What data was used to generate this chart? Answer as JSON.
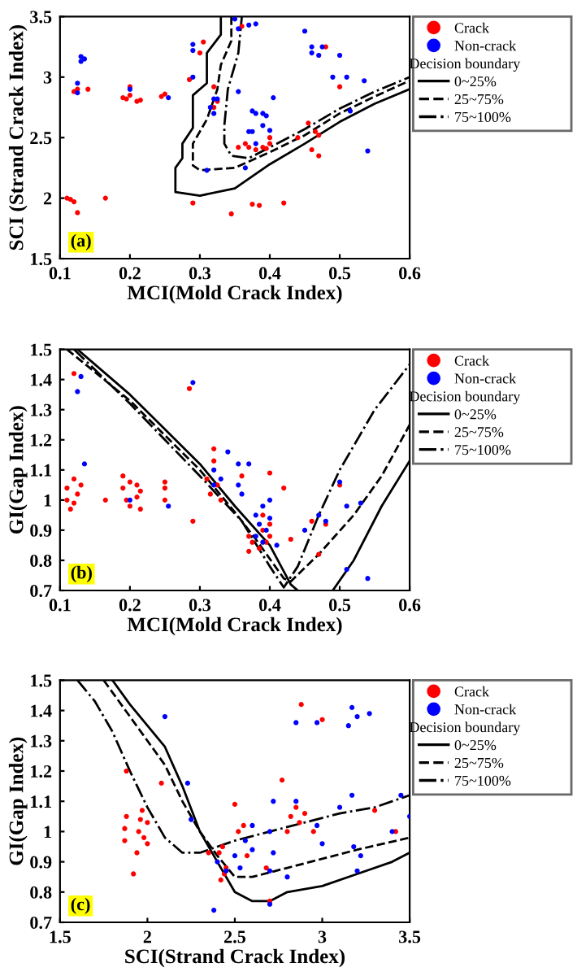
{
  "chart_data": [
    {
      "type": "scatter",
      "xlabel": "MCI(Mold Crack Index)",
      "ylabel": "SCI (Strand Crack Index)",
      "legend_title": "Decision boundary",
      "legend": "right",
      "grid": false,
      "annotations": [
        "(a)"
      ],
      "xlim": [
        0.1,
        0.6
      ],
      "xticks": [
        0.1,
        0.2,
        0.3,
        0.4,
        0.5,
        0.6
      ],
      "ylim": [
        1.5,
        3.5
      ],
      "yticks": [
        1.5,
        2,
        2.5,
        3,
        3.5
      ],
      "series": [
        {
          "name": "Crack",
          "marker": "circle",
          "color": "#ff0000",
          "x": [
            0.11,
            0.115,
            0.12,
            0.125,
            0.12,
            0.125,
            0.14,
            0.165,
            0.19,
            0.195,
            0.2,
            0.2,
            0.21,
            0.215,
            0.25,
            0.245,
            0.285,
            0.29,
            0.3,
            0.305,
            0.32,
            0.325,
            0.32,
            0.345,
            0.355,
            0.36,
            0.365,
            0.37,
            0.375,
            0.38,
            0.385,
            0.39,
            0.395,
            0.4,
            0.4,
            0.42,
            0.44,
            0.455,
            0.46,
            0.465,
            0.47,
            0.47,
            0.48,
            0.5
          ],
          "values": [
            2.0,
            1.99,
            1.97,
            1.88,
            2.88,
            2.9,
            2.9,
            2.0,
            2.83,
            2.82,
            2.92,
            2.85,
            2.8,
            2.81,
            2.86,
            2.84,
            2.98,
            1.96,
            3.2,
            3.29,
            2.92,
            2.8,
            2.75,
            1.87,
            2.42,
            3.42,
            2.45,
            2.42,
            1.95,
            2.4,
            1.94,
            2.42,
            2.41,
            2.45,
            2.5,
            1.96,
            2.5,
            2.62,
            2.4,
            2.55,
            2.35,
            2.52,
            3.25,
            2.92
          ]
        },
        {
          "name": "Non-crack",
          "marker": "circle",
          "color": "#0000ff",
          "x": [
            0.125,
            0.125,
            0.13,
            0.135,
            0.13,
            0.2,
            0.255,
            0.29,
            0.29,
            0.29,
            0.32,
            0.315,
            0.32,
            0.325,
            0.31,
            0.35,
            0.355,
            0.355,
            0.365,
            0.37,
            0.375,
            0.37,
            0.38,
            0.375,
            0.38,
            0.39,
            0.395,
            0.39,
            0.4,
            0.405,
            0.38,
            0.45,
            0.46,
            0.46,
            0.47,
            0.475,
            0.49,
            0.5,
            0.51,
            0.515,
            0.535,
            0.54
          ],
          "values": [
            2.95,
            2.87,
            3.17,
            3.15,
            3.13,
            2.9,
            2.83,
            3.27,
            3.22,
            3.0,
            2.82,
            2.75,
            2.7,
            2.82,
            2.23,
            3.48,
            3.4,
            2.88,
            2.25,
            2.55,
            2.55,
            3.43,
            3.44,
            2.72,
            2.7,
            2.7,
            2.68,
            2.6,
            2.56,
            2.83,
            2.45,
            3.38,
            3.25,
            3.2,
            3.18,
            3.25,
            3.0,
            3.18,
            3.0,
            2.72,
            2.97,
            2.39
          ]
        },
        {
          "name": "0~25%",
          "type": "line",
          "line_style": "solid",
          "color": "#000000",
          "x": [
            0.33,
            0.33,
            0.31,
            0.31,
            0.29,
            0.29,
            0.275,
            0.275,
            0.265,
            0.265,
            0.3,
            0.35,
            0.4,
            0.45,
            0.5,
            0.55,
            0.6
          ],
          "values": [
            3.5,
            3.35,
            3.2,
            2.95,
            2.85,
            2.58,
            2.45,
            2.33,
            2.25,
            2.05,
            2.02,
            2.08,
            2.28,
            2.45,
            2.63,
            2.78,
            2.9
          ]
        },
        {
          "name": "25~75%",
          "type": "line",
          "line_style": "dashed",
          "color": "#000000",
          "x": [
            0.345,
            0.345,
            0.33,
            0.325,
            0.31,
            0.29,
            0.29,
            0.3,
            0.35,
            0.4,
            0.45,
            0.5,
            0.55,
            0.6
          ],
          "values": [
            3.5,
            3.3,
            3.1,
            2.9,
            2.65,
            2.45,
            2.27,
            2.23,
            2.25,
            2.38,
            2.52,
            2.7,
            2.84,
            2.97
          ]
        },
        {
          "name": "75~100%",
          "type": "line",
          "line_style": "dashdot",
          "color": "#000000",
          "x": [
            0.36,
            0.355,
            0.34,
            0.335,
            0.335,
            0.345,
            0.37,
            0.4,
            0.45,
            0.5,
            0.55,
            0.6
          ],
          "values": [
            3.5,
            3.2,
            2.9,
            2.6,
            2.45,
            2.35,
            2.33,
            2.42,
            2.57,
            2.74,
            2.88,
            3.0
          ]
        }
      ]
    },
    {
      "type": "scatter",
      "xlabel": "MCI(Mold Crack Index)",
      "ylabel": "GI(Gap Index)",
      "legend_title": "Decision boundary",
      "legend": "right",
      "grid": false,
      "annotations": [
        "(b)"
      ],
      "xlim": [
        0.1,
        0.6
      ],
      "xticks": [
        0.1,
        0.2,
        0.3,
        0.4,
        0.5,
        0.6
      ],
      "ylim": [
        0.7,
        1.5
      ],
      "yticks": [
        0.7,
        0.8,
        0.9,
        1,
        1.1,
        1.2,
        1.3,
        1.4,
        1.5
      ],
      "series": [
        {
          "name": "Crack",
          "marker": "circle",
          "color": "#ff0000",
          "x": [
            0.11,
            0.11,
            0.115,
            0.12,
            0.12,
            0.125,
            0.13,
            0.12,
            0.165,
            0.19,
            0.19,
            0.195,
            0.2,
            0.2,
            0.21,
            0.21,
            0.215,
            0.215,
            0.25,
            0.25,
            0.25,
            0.285,
            0.29,
            0.31,
            0.315,
            0.32,
            0.325,
            0.33,
            0.32,
            0.36,
            0.37,
            0.375,
            0.37,
            0.385,
            0.39,
            0.39,
            0.395,
            0.4,
            0.4,
            0.4,
            0.42,
            0.43,
            0.46,
            0.47,
            0.48,
            0.5
          ],
          "values": [
            1.04,
            1.0,
            0.97,
            0.99,
            1.07,
            1.02,
            1.05,
            1.42,
            1.0,
            1.08,
            1.04,
            1.0,
            0.98,
            1.06,
            1.05,
            1.01,
            0.97,
            1.03,
            1.0,
            1.04,
            1.06,
            1.37,
            0.93,
            1.07,
            1.02,
            1.13,
            1.05,
            1.0,
            1.17,
            1.08,
            0.83,
            0.86,
            0.88,
            0.84,
            0.9,
            0.95,
            0.86,
            0.92,
            0.88,
            1.09,
            1.04,
            0.87,
            0.93,
            0.82,
            0.92,
            1.05
          ]
        },
        {
          "name": "Non-crack",
          "marker": "circle",
          "color": "#0000ff",
          "x": [
            0.125,
            0.13,
            0.135,
            0.2,
            0.255,
            0.29,
            0.32,
            0.32,
            0.33,
            0.34,
            0.355,
            0.355,
            0.36,
            0.37,
            0.38,
            0.38,
            0.385,
            0.39,
            0.39,
            0.395,
            0.4,
            0.4,
            0.41,
            0.45,
            0.47,
            0.48,
            0.5,
            0.51,
            0.53,
            0.51,
            0.54
          ],
          "values": [
            1.36,
            1.41,
            1.12,
            1.0,
            0.98,
            1.39,
            1.05,
            1.1,
            1.07,
            1.16,
            1.05,
            1.12,
            1.02,
            1.12,
            0.88,
            0.95,
            0.92,
            0.98,
            0.86,
            0.9,
            1.0,
            0.94,
            0.85,
            0.9,
            0.95,
            0.93,
            1.06,
            0.98,
            0.99,
            0.77,
            0.74
          ]
        },
        {
          "name": "0~25%",
          "type": "line",
          "line_style": "solid",
          "color": "#000000",
          "x": [
            0.125,
            0.2,
            0.3,
            0.35,
            0.4,
            0.43,
            0.44,
            0.46,
            0.49,
            0.52,
            0.56,
            0.6
          ],
          "values": [
            1.5,
            1.35,
            1.12,
            0.98,
            0.85,
            0.72,
            0.7,
            null,
            0.7,
            0.8,
            0.98,
            1.13
          ]
        },
        {
          "name": "25~75%",
          "type": "line",
          "line_style": "dashed",
          "color": "#000000",
          "x": [
            0.11,
            0.2,
            0.3,
            0.35,
            0.38,
            0.42,
            0.43,
            0.47,
            0.52,
            0.56,
            0.6
          ],
          "values": [
            1.5,
            1.33,
            1.1,
            0.96,
            0.87,
            0.74,
            0.73,
            0.82,
            0.95,
            1.08,
            1.25
          ]
        },
        {
          "name": "75~100%",
          "type": "line",
          "line_style": "dashdot",
          "color": "#000000",
          "x": [
            0.12,
            0.2,
            0.3,
            0.36,
            0.4,
            0.42,
            0.44,
            0.47,
            0.5,
            0.55,
            0.6
          ],
          "values": [
            1.5,
            1.32,
            1.08,
            0.93,
            0.78,
            0.71,
            0.78,
            0.95,
            1.1,
            1.3,
            1.45
          ]
        }
      ]
    },
    {
      "type": "scatter",
      "xlabel": "SCI(Strand Crack Index)",
      "ylabel": "GI(Gap Index)",
      "legend_title": "Decision boundary",
      "legend": "right",
      "grid": false,
      "annotations": [
        "(c)"
      ],
      "xlim": [
        1.5,
        3.5
      ],
      "xticks": [
        1.5,
        2,
        2.5,
        3,
        3.5
      ],
      "ylim": [
        0.7,
        1.5
      ],
      "yticks": [
        0.7,
        0.8,
        0.9,
        1,
        1.1,
        1.2,
        1.3,
        1.4,
        1.5
      ],
      "series": [
        {
          "name": "Crack",
          "marker": "circle",
          "color": "#ff0000",
          "x": [
            1.87,
            1.87,
            1.88,
            1.88,
            1.92,
            1.94,
            1.95,
            1.97,
            1.98,
            2.0,
            2.0,
            1.96,
            2.08,
            2.35,
            2.41,
            2.42,
            2.43,
            2.44,
            2.45,
            2.5,
            2.52,
            2.55,
            2.57,
            2.68,
            2.7,
            2.77,
            2.8,
            2.82,
            2.85,
            2.87,
            2.9,
            2.88,
            2.95,
            3.0,
            3.3,
            3.42
          ],
          "values": [
            0.97,
            1.01,
            1.05,
            1.2,
            0.86,
            0.93,
            1.0,
            1.07,
            0.98,
            1.03,
            0.96,
            1.04,
            1.16,
            0.93,
            0.93,
            0.84,
            0.95,
            0.86,
            0.88,
            1.09,
            1.0,
            1.02,
            0.92,
            0.88,
            0.77,
            1.17,
            1.0,
            1.05,
            1.08,
            1.03,
            1.06,
            1.42,
            1.0,
            1.37,
            1.07,
            1.0
          ]
        },
        {
          "name": "Non-crack",
          "marker": "circle",
          "color": "#0000ff",
          "x": [
            2.1,
            2.23,
            2.25,
            2.38,
            2.4,
            2.45,
            2.5,
            2.53,
            2.56,
            2.6,
            2.6,
            2.7,
            2.7,
            2.72,
            2.72,
            2.8,
            2.85,
            2.85,
            2.97,
            2.97,
            3.0,
            3.1,
            3.15,
            3.17,
            3.2,
            3.27,
            3.17,
            3.18,
            3.22,
            3.2,
            3.4,
            3.45,
            3.5,
            2.7
          ],
          "values": [
            1.38,
            1.16,
            1.04,
            0.74,
            0.9,
            0.87,
            0.92,
            0.88,
            0.97,
            0.94,
            1.02,
            0.87,
            1.0,
            0.93,
            1.1,
            0.85,
            1.1,
            1.36,
            1.36,
            1.02,
            0.96,
            1.08,
            1.35,
            1.41,
            1.38,
            1.39,
            1.12,
            0.95,
            0.92,
            0.87,
            1.0,
            1.12,
            1.05,
            0.76
          ]
        },
        {
          "name": "0~25%",
          "type": "line",
          "line_style": "solid",
          "color": "#000000",
          "x": [
            1.8,
            1.9,
            2.0,
            2.1,
            2.2,
            2.3,
            2.4,
            2.5,
            2.6,
            2.7,
            2.8,
            3.0,
            3.2,
            3.4,
            3.5
          ],
          "values": [
            1.5,
            1.42,
            1.35,
            1.28,
            1.15,
            1.0,
            0.9,
            0.8,
            0.77,
            0.77,
            0.8,
            0.82,
            0.86,
            0.9,
            0.93
          ]
        },
        {
          "name": "25~75%",
          "type": "line",
          "line_style": "dashed",
          "color": "#000000",
          "x": [
            1.75,
            1.9,
            2.0,
            2.1,
            2.2,
            2.3,
            2.4,
            2.5,
            2.6,
            2.8,
            3.0,
            3.2,
            3.5
          ],
          "values": [
            1.5,
            1.38,
            1.3,
            1.22,
            1.1,
            1.0,
            0.92,
            0.85,
            0.85,
            0.88,
            0.91,
            0.94,
            0.98
          ]
        },
        {
          "name": "75~100%",
          "type": "line",
          "line_style": "dashdot",
          "color": "#000000",
          "x": [
            1.6,
            1.7,
            1.8,
            1.9,
            2.0,
            2.1,
            2.2,
            2.3,
            2.4,
            2.5,
            2.7,
            2.9,
            3.1,
            3.3,
            3.5
          ],
          "values": [
            1.5,
            1.43,
            1.33,
            1.2,
            1.08,
            0.98,
            0.93,
            0.93,
            0.95,
            0.97,
            1.0,
            1.03,
            1.06,
            1.08,
            1.12
          ]
        }
      ]
    }
  ]
}
